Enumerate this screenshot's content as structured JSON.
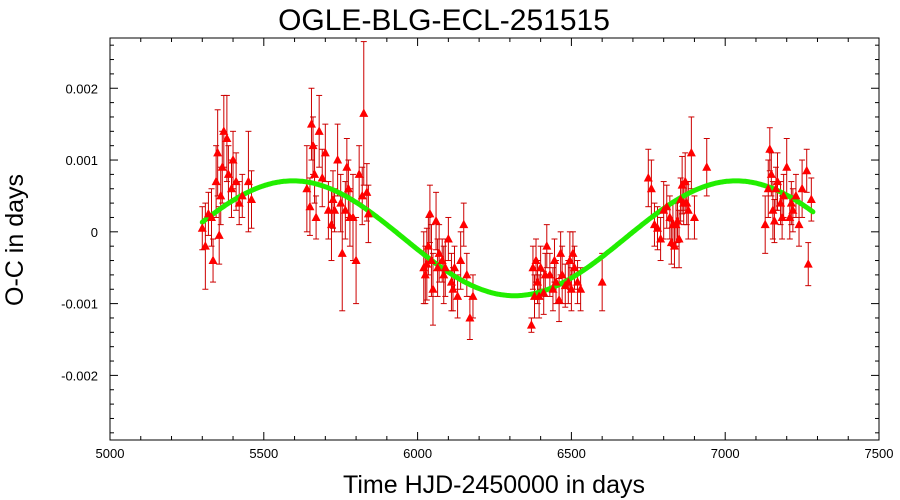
{
  "chart_data": {
    "type": "scatter",
    "title": "OGLE-BLG-ECL-251515",
    "xlabel": "Time HJD-2450000 in days",
    "ylabel": "O-C in days",
    "xlim": [
      5000,
      7500
    ],
    "ylim": [
      -0.0029,
      0.0027
    ],
    "x_ticks": [
      5000,
      5500,
      6000,
      6500,
      7000,
      7500
    ],
    "x_tick_labels": [
      "5000",
      "5500",
      "6000",
      "6500",
      "7000",
      "7500"
    ],
    "y_ticks": [
      0.002,
      0.001,
      0,
      -0.001,
      -0.002
    ],
    "y_tick_labels": [
      "0.002",
      "0.001",
      "0",
      "-0.001",
      "-0.002"
    ],
    "grid": false,
    "colors": {
      "points": "#ff0000",
      "error_bars": "#cc0000",
      "model": "#22ee00"
    },
    "series": [
      {
        "kind": "points_with_errors",
        "points": [
          {
            "x": 5300,
            "y": 5e-05,
            "err": 0.0003
          },
          {
            "x": 5310,
            "y": -0.0002,
            "err": 0.0006
          },
          {
            "x": 5320,
            "y": 0.00025,
            "err": 0.0003
          },
          {
            "x": 5330,
            "y": 0.0002,
            "err": 0.0004
          },
          {
            "x": 5335,
            "y": -0.0004,
            "err": 0.0003
          },
          {
            "x": 5345,
            "y": 0.0007,
            "err": 0.0005
          },
          {
            "x": 5350,
            "y": 0.0011,
            "err": 0.0006
          },
          {
            "x": 5355,
            "y": -5e-05,
            "err": 0.0004
          },
          {
            "x": 5360,
            "y": 0.0005,
            "err": 0.0004
          },
          {
            "x": 5365,
            "y": 0.0009,
            "err": 0.0005
          },
          {
            "x": 5370,
            "y": 0.0014,
            "err": 0.0005
          },
          {
            "x": 5380,
            "y": 0.0013,
            "err": 0.0006
          },
          {
            "x": 5385,
            "y": 0.0008,
            "err": 0.0004
          },
          {
            "x": 5395,
            "y": 0.0006,
            "err": 0.0004
          },
          {
            "x": 5400,
            "y": 0.001,
            "err": 0.0004
          },
          {
            "x": 5410,
            "y": 0.0007,
            "err": 0.0004
          },
          {
            "x": 5420,
            "y": 0.0004,
            "err": 0.0003
          },
          {
            "x": 5430,
            "y": 0.0005,
            "err": 0.0003
          },
          {
            "x": 5450,
            "y": 0.0007,
            "err": 0.0007
          },
          {
            "x": 5460,
            "y": 0.00045,
            "err": 0.0004
          },
          {
            "x": 5640,
            "y": 0.0006,
            "err": 0.0006
          },
          {
            "x": 5650,
            "y": 0.00035,
            "err": 0.0004
          },
          {
            "x": 5655,
            "y": 0.0015,
            "err": 0.0005
          },
          {
            "x": 5660,
            "y": 0.0012,
            "err": 0.0004
          },
          {
            "x": 5665,
            "y": 0.0008,
            "err": 0.0004
          },
          {
            "x": 5670,
            "y": 0.0002,
            "err": 0.0003
          },
          {
            "x": 5680,
            "y": 0.0014,
            "err": 0.0005
          },
          {
            "x": 5690,
            "y": 0.00075,
            "err": 0.0004
          },
          {
            "x": 5700,
            "y": 0.0011,
            "err": 0.0004
          },
          {
            "x": 5710,
            "y": 0.0003,
            "err": 0.0004
          },
          {
            "x": 5720,
            "y": 0.0001,
            "err": 0.0005
          },
          {
            "x": 5725,
            "y": 0.00045,
            "err": 0.0004
          },
          {
            "x": 5730,
            "y": 0.0003,
            "err": 0.0003
          },
          {
            "x": 5740,
            "y": 0.001,
            "err": 0.0005
          },
          {
            "x": 5750,
            "y": 0.0004,
            "err": 0.0004
          },
          {
            "x": 5755,
            "y": -0.0003,
            "err": 0.0008
          },
          {
            "x": 5765,
            "y": 0.0003,
            "err": 0.0004
          },
          {
            "x": 5770,
            "y": 0.0009,
            "err": 0.0004
          },
          {
            "x": 5775,
            "y": 0.0006,
            "err": 0.0004
          },
          {
            "x": 5780,
            "y": 0.0002,
            "err": 0.0004
          },
          {
            "x": 5790,
            "y": 0.0002,
            "err": 0.0006
          },
          {
            "x": 5800,
            "y": -0.0004,
            "err": 0.0006
          },
          {
            "x": 5810,
            "y": 0.0008,
            "err": 0.0004
          },
          {
            "x": 5820,
            "y": 0.0005,
            "err": 0.0004
          },
          {
            "x": 5825,
            "y": 0.00165,
            "err": 0.001
          },
          {
            "x": 5835,
            "y": 0.00055,
            "err": 0.0004
          },
          {
            "x": 5840,
            "y": 0.00025,
            "err": 0.0004
          },
          {
            "x": 6020,
            "y": -0.0005,
            "err": 0.0005
          },
          {
            "x": 6025,
            "y": -0.0006,
            "err": 0.0004
          },
          {
            "x": 6030,
            "y": -0.00045,
            "err": 0.0005
          },
          {
            "x": 6035,
            "y": -0.0002,
            "err": 0.0004
          },
          {
            "x": 6040,
            "y": 0.00025,
            "err": 0.0004
          },
          {
            "x": 6045,
            "y": -0.0004,
            "err": 0.0005
          },
          {
            "x": 6050,
            "y": -0.0008,
            "err": 0.0005
          },
          {
            "x": 6060,
            "y": 0.00015,
            "err": 0.0004
          },
          {
            "x": 6065,
            "y": -0.0005,
            "err": 0.0004
          },
          {
            "x": 6070,
            "y": -0.0003,
            "err": 0.0004
          },
          {
            "x": 6080,
            "y": -0.0004,
            "err": 0.0003
          },
          {
            "x": 6085,
            "y": -0.0006,
            "err": 0.0004
          },
          {
            "x": 6090,
            "y": -0.0005,
            "err": 0.0004
          },
          {
            "x": 6100,
            "y": -0.0001,
            "err": 0.0003
          },
          {
            "x": 6110,
            "y": -0.0007,
            "err": 0.0004
          },
          {
            "x": 6115,
            "y": -0.0008,
            "err": 0.0003
          },
          {
            "x": 6120,
            "y": -0.0005,
            "err": 0.0003
          },
          {
            "x": 6130,
            "y": -0.0009,
            "err": 0.0003
          },
          {
            "x": 6140,
            "y": -0.0004,
            "err": 0.0004
          },
          {
            "x": 6150,
            "y": 0.0001,
            "err": 0.0003
          },
          {
            "x": 6160,
            "y": -0.0006,
            "err": 0.0003
          },
          {
            "x": 6170,
            "y": -0.0012,
            "err": 0.0003
          },
          {
            "x": 6180,
            "y": -0.0009,
            "err": 0.0003
          },
          {
            "x": 6370,
            "y": -0.0013,
            "err": 0.0001
          },
          {
            "x": 6375,
            "y": -0.0005,
            "err": 0.0003
          },
          {
            "x": 6380,
            "y": -0.0009,
            "err": 0.0003
          },
          {
            "x": 6385,
            "y": -0.0004,
            "err": 0.0003
          },
          {
            "x": 6390,
            "y": -0.0007,
            "err": 0.0003
          },
          {
            "x": 6395,
            "y": -0.0009,
            "err": 0.0003
          },
          {
            "x": 6400,
            "y": -0.0005,
            "err": 0.0003
          },
          {
            "x": 6410,
            "y": -0.00085,
            "err": 0.0003
          },
          {
            "x": 6415,
            "y": -0.0006,
            "err": 0.0003
          },
          {
            "x": 6420,
            "y": -0.0002,
            "err": 0.0003
          },
          {
            "x": 6430,
            "y": -0.0006,
            "err": 0.0003
          },
          {
            "x": 6440,
            "y": -0.0008,
            "err": 0.0003
          },
          {
            "x": 6445,
            "y": -0.0004,
            "err": 0.0003
          },
          {
            "x": 6450,
            "y": -0.0007,
            "err": 0.0003
          },
          {
            "x": 6460,
            "y": -0.00095,
            "err": 0.0003
          },
          {
            "x": 6465,
            "y": -0.0003,
            "err": 0.0003
          },
          {
            "x": 6470,
            "y": -0.0006,
            "err": 0.0004
          },
          {
            "x": 6480,
            "y": -0.00075,
            "err": 0.0003
          },
          {
            "x": 6490,
            "y": -0.0007,
            "err": 0.0003
          },
          {
            "x": 6495,
            "y": -0.0004,
            "err": 0.0004
          },
          {
            "x": 6500,
            "y": -0.0008,
            "err": 0.0003
          },
          {
            "x": 6505,
            "y": -0.0003,
            "err": 0.0003
          },
          {
            "x": 6510,
            "y": -0.0005,
            "err": 0.0003
          },
          {
            "x": 6520,
            "y": -0.0007,
            "err": 0.0003
          },
          {
            "x": 6530,
            "y": -0.0008,
            "err": 0.0003
          },
          {
            "x": 6600,
            "y": -0.0007,
            "err": 0.0004
          },
          {
            "x": 6750,
            "y": 0.00075,
            "err": 0.0004
          },
          {
            "x": 6760,
            "y": 0.0006,
            "err": 0.0004
          },
          {
            "x": 6770,
            "y": 0.0001,
            "err": 0.0003
          },
          {
            "x": 6780,
            "y": 5e-05,
            "err": 0.0003
          },
          {
            "x": 6790,
            "y": -0.0001,
            "err": 0.0003
          },
          {
            "x": 6800,
            "y": 0.0003,
            "err": 0.0004
          },
          {
            "x": 6810,
            "y": 0.00035,
            "err": 0.0003
          },
          {
            "x": 6820,
            "y": 0.0002,
            "err": 0.0003
          },
          {
            "x": 6825,
            "y": -0.00015,
            "err": 0.0003
          },
          {
            "x": 6830,
            "y": 0.0001,
            "err": 0.0003
          },
          {
            "x": 6835,
            "y": -0.0002,
            "err": 0.0003
          },
          {
            "x": 6840,
            "y": 0.0001,
            "err": 0.0003
          },
          {
            "x": 6845,
            "y": 0.00015,
            "err": 0.0003
          },
          {
            "x": 6850,
            "y": -0.0001,
            "err": 0.0004
          },
          {
            "x": 6855,
            "y": 0.00045,
            "err": 0.0003
          },
          {
            "x": 6860,
            "y": 0.00065,
            "err": 0.0004
          },
          {
            "x": 6865,
            "y": 0.0004,
            "err": 0.0003
          },
          {
            "x": 6870,
            "y": 0.0007,
            "err": 0.0004
          },
          {
            "x": 6875,
            "y": 0.0004,
            "err": 0.0003
          },
          {
            "x": 6880,
            "y": 0.0003,
            "err": 0.0004
          },
          {
            "x": 6890,
            "y": 0.0011,
            "err": 0.0005
          },
          {
            "x": 6900,
            "y": 0.0002,
            "err": 0.0003
          },
          {
            "x": 6940,
            "y": 0.0009,
            "err": 0.0004
          },
          {
            "x": 7130,
            "y": 0.0001,
            "err": 0.0004
          },
          {
            "x": 7140,
            "y": 0.0006,
            "err": 0.0004
          },
          {
            "x": 7145,
            "y": 0.00115,
            "err": 0.0003
          },
          {
            "x": 7150,
            "y": 0.0008,
            "err": 0.0003
          },
          {
            "x": 7155,
            "y": 0.0003,
            "err": 0.0004
          },
          {
            "x": 7160,
            "y": 0.00015,
            "err": 0.0003
          },
          {
            "x": 7165,
            "y": 0.0006,
            "err": 0.0003
          },
          {
            "x": 7170,
            "y": 0.0007,
            "err": 0.0004
          },
          {
            "x": 7180,
            "y": 0.0004,
            "err": 0.0003
          },
          {
            "x": 7185,
            "y": 0.0002,
            "err": 0.0003
          },
          {
            "x": 7190,
            "y": 0.0005,
            "err": 0.0003
          },
          {
            "x": 7200,
            "y": 0.0009,
            "err": 0.0004
          },
          {
            "x": 7210,
            "y": 0.0002,
            "err": 0.0003
          },
          {
            "x": 7215,
            "y": 0.0004,
            "err": 0.0003
          },
          {
            "x": 7220,
            "y": 0.0003,
            "err": 0.0003
          },
          {
            "x": 7230,
            "y": 0.0005,
            "err": 0.0003
          },
          {
            "x": 7240,
            "y": 0.0001,
            "err": 0.0003
          },
          {
            "x": 7250,
            "y": 0.0006,
            "err": 0.0004
          },
          {
            "x": 7265,
            "y": 0.00085,
            "err": 0.0003
          },
          {
            "x": 7270,
            "y": -0.00045,
            "err": 0.0003
          },
          {
            "x": 7280,
            "y": 0.00045,
            "err": 0.0003
          }
        ]
      },
      {
        "kind": "model_curve",
        "offset": -9e-05,
        "amplitude": 0.0008,
        "period": 1440,
        "t_peak": 5595,
        "x_range": [
          5300,
          7285
        ]
      }
    ]
  }
}
